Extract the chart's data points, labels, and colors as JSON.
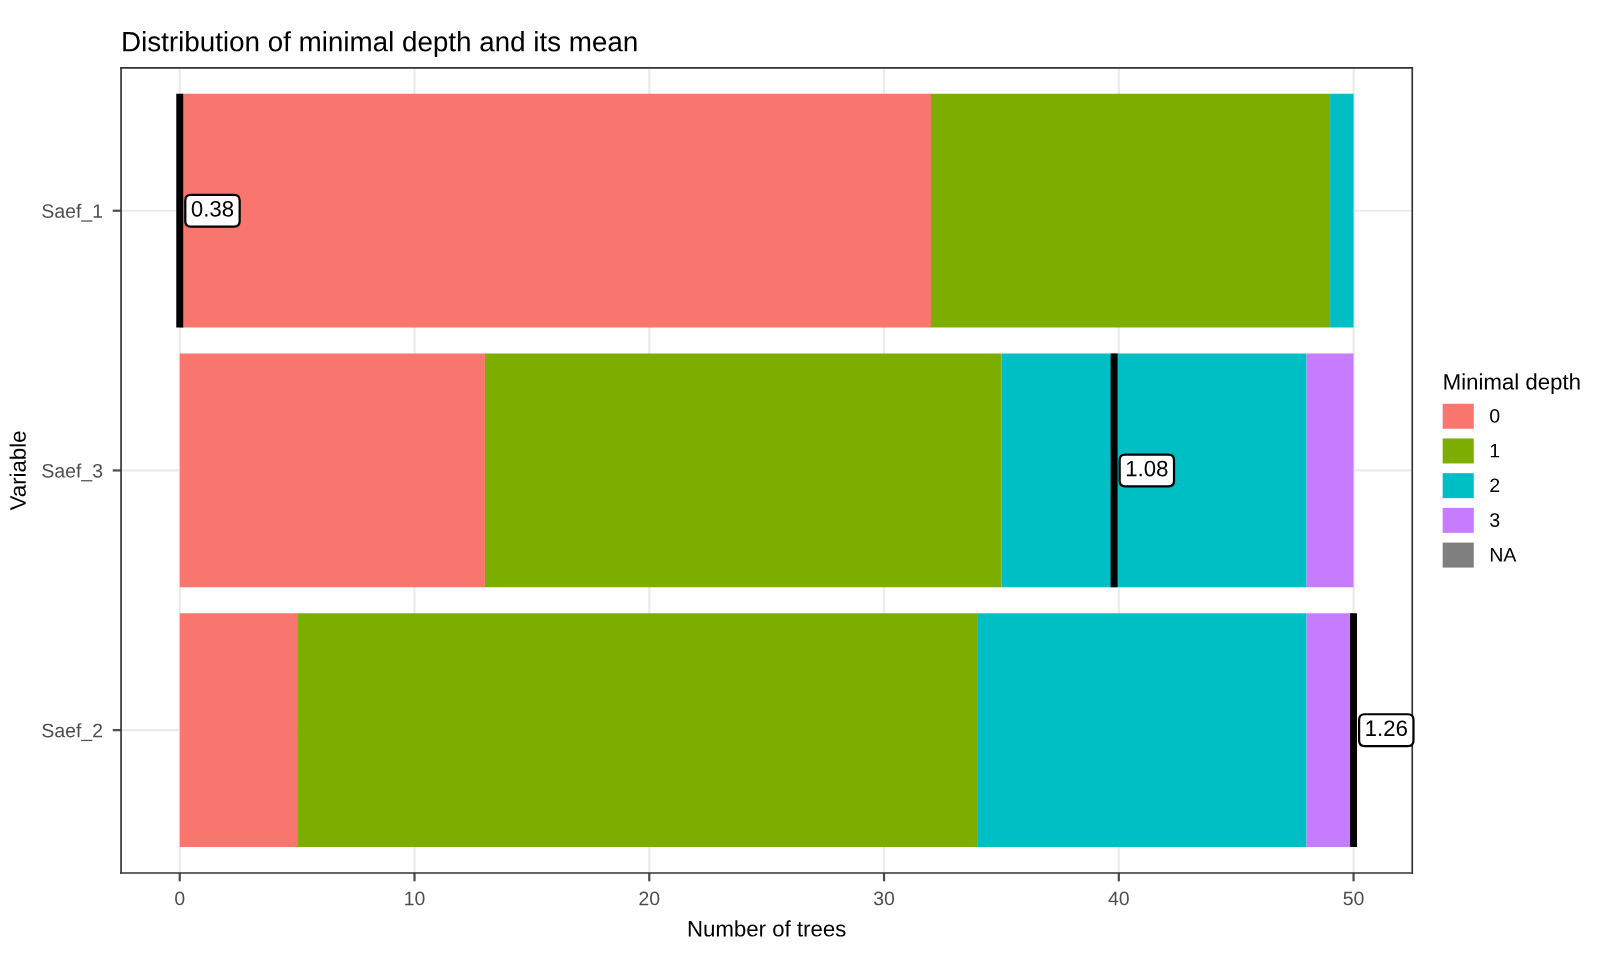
{
  "chart_data": {
    "type": "bar",
    "orientation": "horizontal",
    "stacked": true,
    "title": "Distribution of minimal depth and its mean",
    "xlabel": "Number of trees",
    "ylabel": "Variable",
    "legend_title": "Minimal depth",
    "categories": [
      "Saef_1",
      "Saef_3",
      "Saef_2"
    ],
    "series": [
      {
        "name": "0",
        "color": "#f8766d",
        "values": [
          32,
          13,
          5
        ]
      },
      {
        "name": "1",
        "color": "#7cae00",
        "values": [
          17,
          22,
          29
        ]
      },
      {
        "name": "2",
        "color": "#00bfc4",
        "values": [
          1,
          13,
          14
        ]
      },
      {
        "name": "3",
        "color": "#c77cff",
        "values": [
          0,
          2,
          2
        ]
      },
      {
        "name": "NA",
        "color": "#7f7f7f",
        "values": [
          null,
          null,
          null
        ]
      }
    ],
    "ref_lines": [
      {
        "axis": "x",
        "value": 0,
        "color": "#000000"
      },
      {
        "axis": "x",
        "value": 39.8,
        "color": "#000000"
      },
      {
        "axis": "x",
        "value": 50,
        "color": "#000000"
      }
    ],
    "annotations": [
      {
        "text": "0.38",
        "x": 0,
        "y": "Saef_1"
      },
      {
        "text": "1.08",
        "x": 39.8,
        "y": "Saef_3"
      },
      {
        "text": "1.26",
        "x": 50,
        "y": "Saef_2"
      }
    ],
    "xlim": [
      -2.5,
      52.5
    ],
    "xticks": [
      0,
      10,
      20,
      30,
      40,
      50
    ],
    "grid": true,
    "legend": "right"
  }
}
